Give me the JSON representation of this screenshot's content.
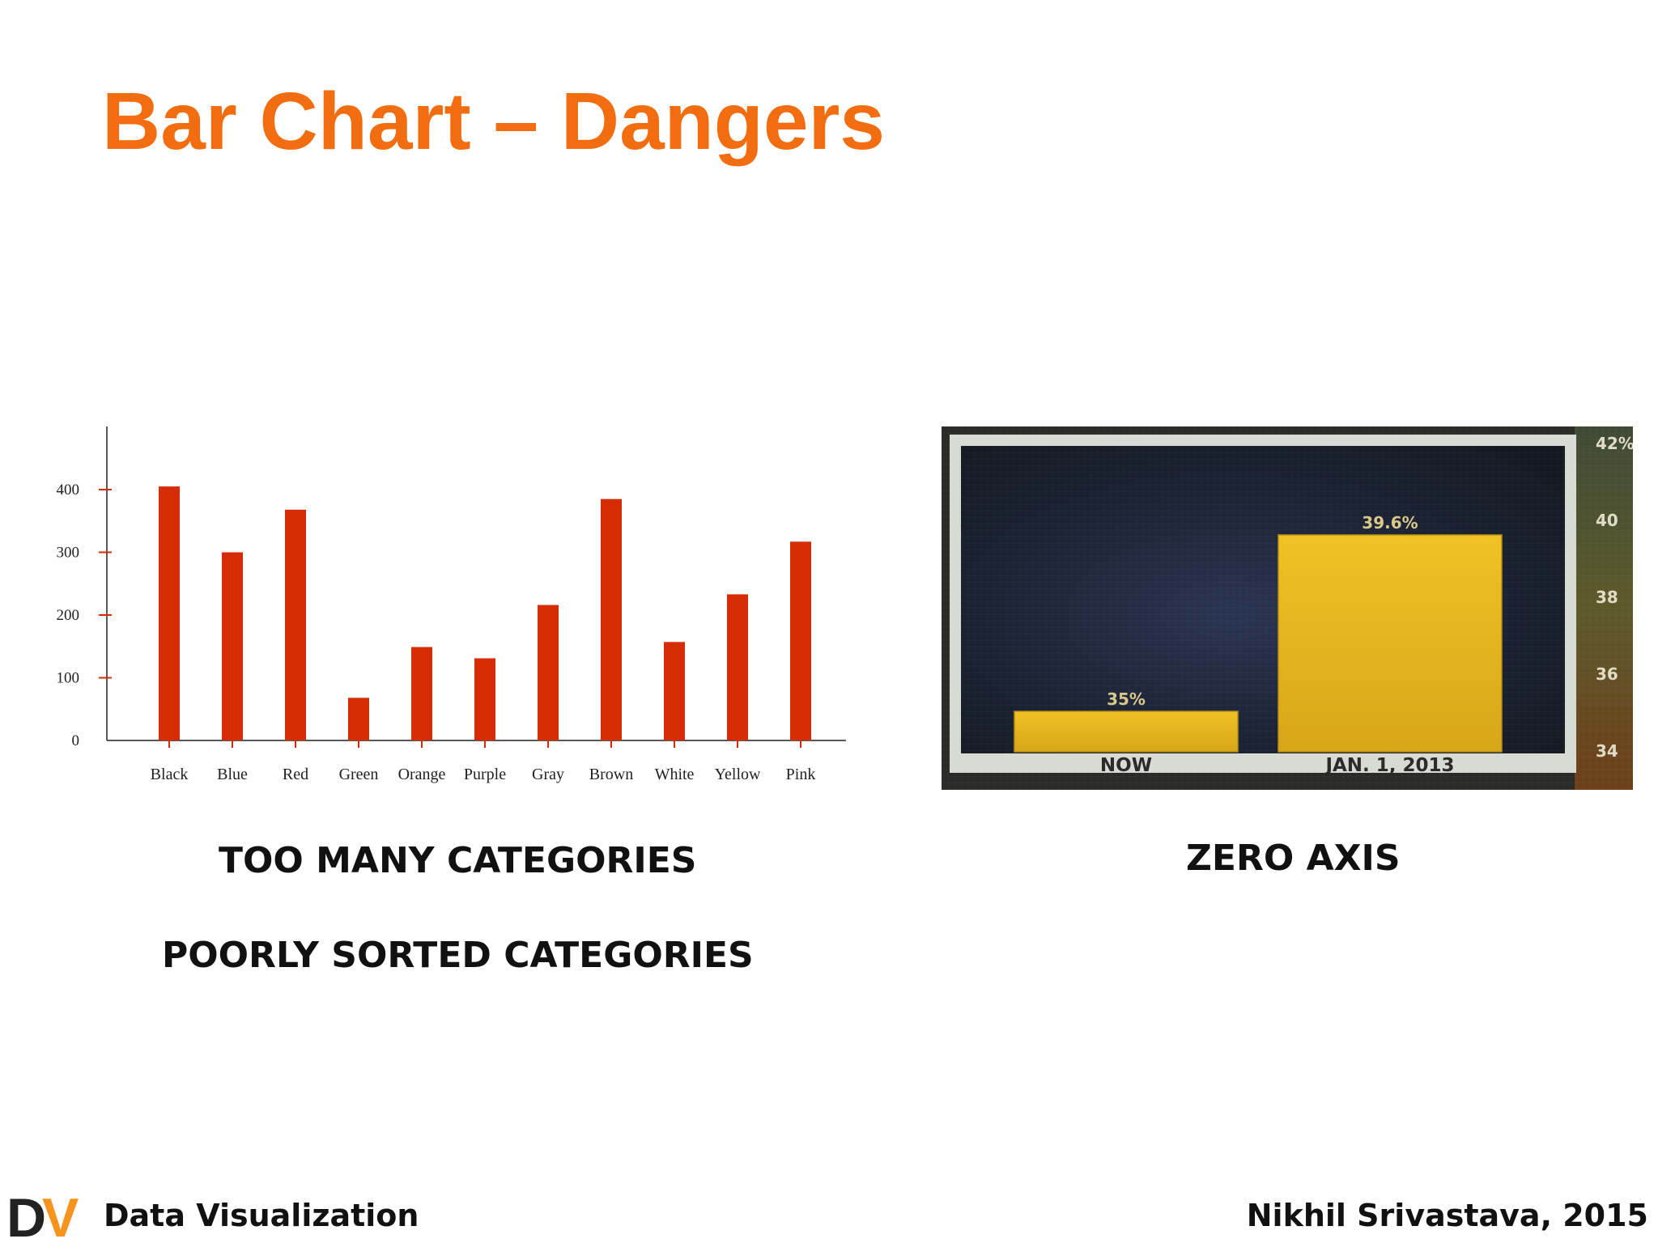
{
  "slide": {
    "title": "Bar Chart – Dangers",
    "captions": [
      "TOO MANY CATEGORIES",
      "POORLY SORTED CATEGORIES",
      "ZERO AXIS"
    ],
    "footer_left": "Data Visualization",
    "footer_right": "Nikhil Srivastava, 2015",
    "logo_text": "DV",
    "colors": {
      "title": "#f26d0f",
      "bar": "#d42d05",
      "logo_orange": "#f7941d",
      "logo_dark": "#222222",
      "yellow_bar": "#e8b71c"
    }
  },
  "chart_data": [
    {
      "type": "bar",
      "categories": [
        "Black",
        "Blue",
        "Red",
        "Green",
        "Orange",
        "Purple",
        "Gray",
        "Brown",
        "White",
        "Yellow",
        "Pink"
      ],
      "values": [
        405,
        300,
        368,
        68,
        149,
        131,
        216,
        385,
        157,
        233,
        317
      ],
      "yticks": [
        0,
        100,
        200,
        300,
        400
      ],
      "ylim": [
        0,
        500
      ],
      "title": "",
      "xlabel": "",
      "ylabel": ""
    },
    {
      "type": "bar",
      "categories": [
        "NOW",
        "JAN. 1, 2013"
      ],
      "values": [
        35,
        39.6
      ],
      "data_labels": [
        "35%",
        "39.6%"
      ],
      "yticks": [
        "34",
        "36",
        "38",
        "40",
        "42%"
      ],
      "tick_values": [
        34,
        36,
        38,
        40,
        42
      ],
      "ylim": [
        34,
        42
      ],
      "axis_position": "right",
      "title": "",
      "xlabel": "",
      "ylabel": ""
    }
  ]
}
